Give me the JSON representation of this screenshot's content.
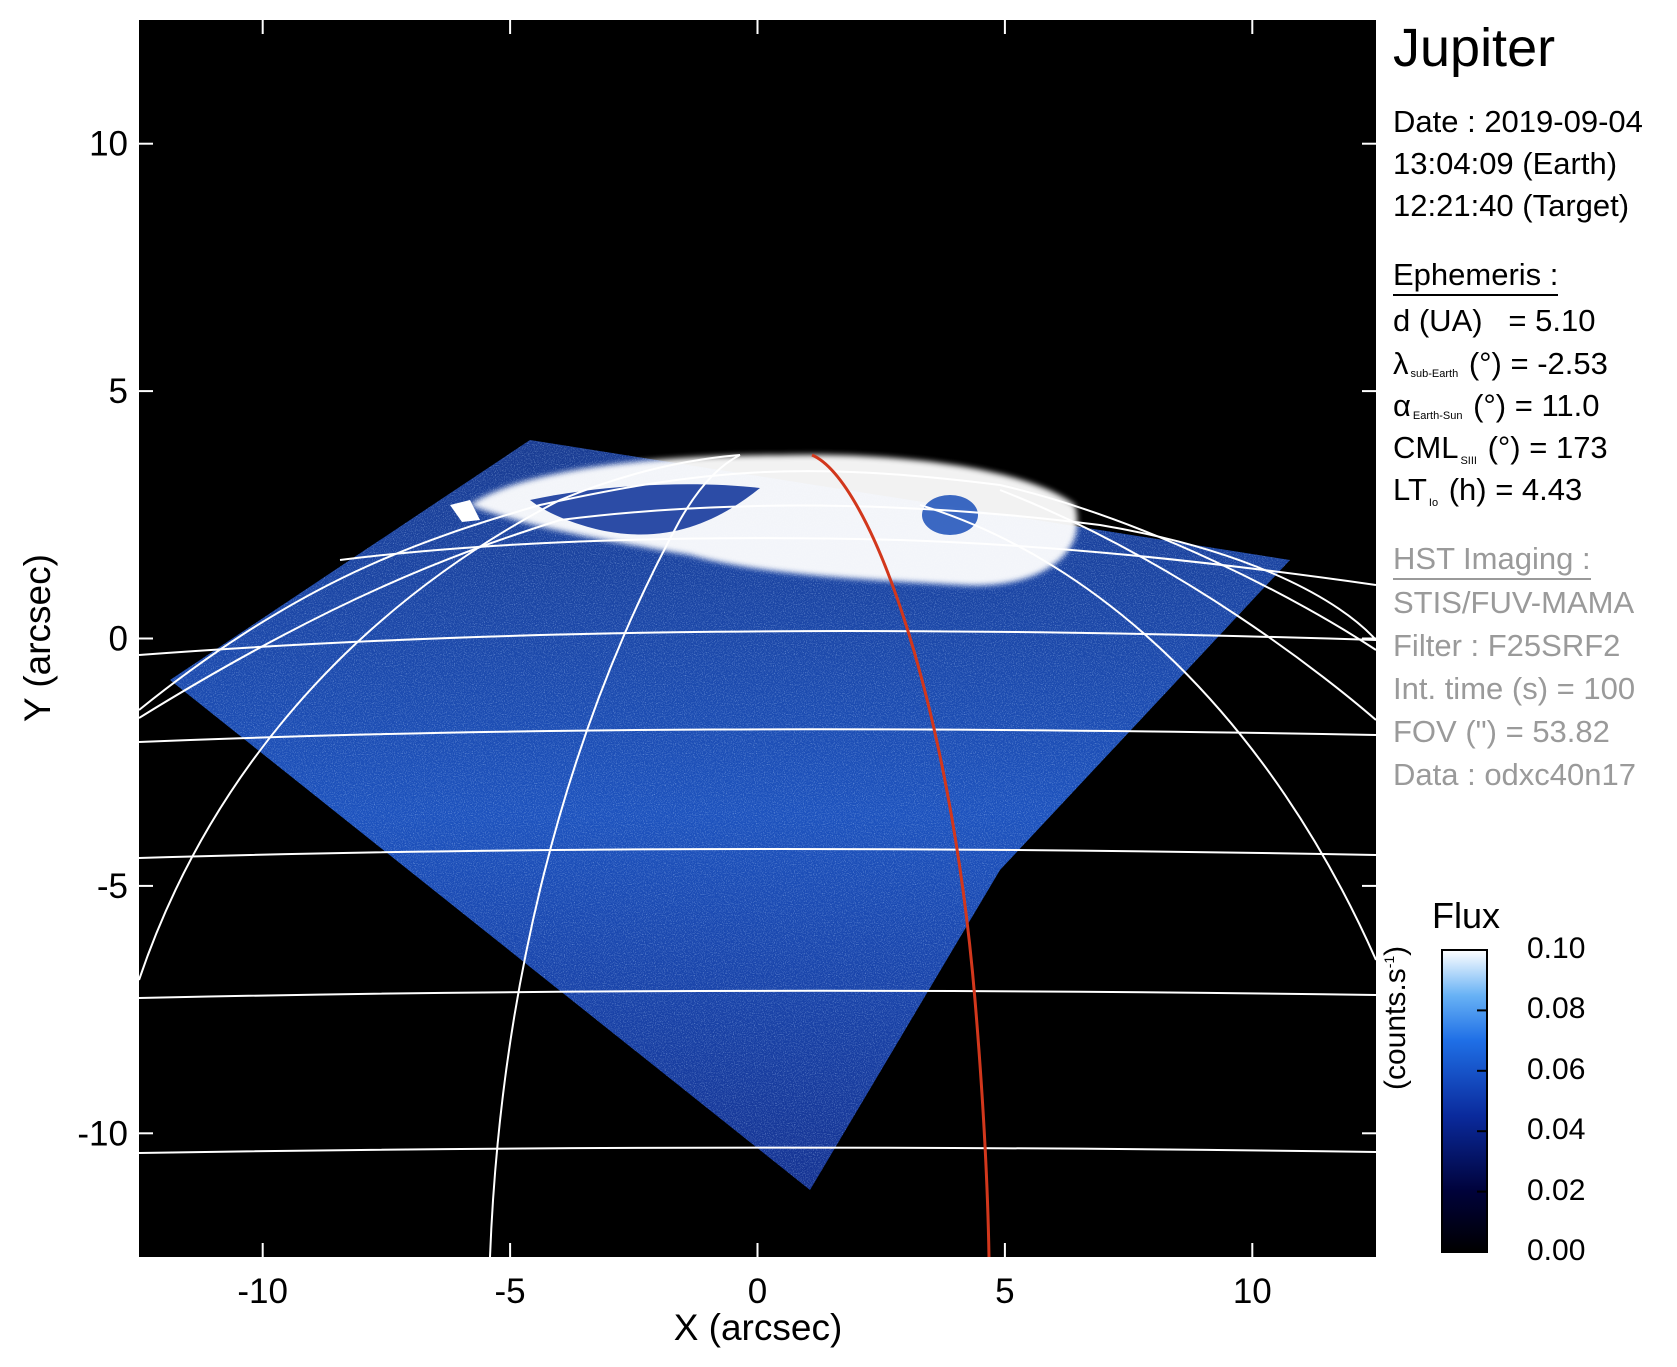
{
  "planet": "Jupiter",
  "date_lines": [
    "Date : 2019-09-04",
    "13:04:09 (Earth)",
    "12:21:40 (Target)"
  ],
  "ephemeris": {
    "header": "Ephemeris :",
    "d": {
      "label": "d (UA)",
      "value": "= 5.10"
    },
    "lat": {
      "symbol": "λ",
      "sub": "sub-Earth",
      "unit": " (°)",
      "value": " = -2.53"
    },
    "alpha": {
      "symbol": "α",
      "sub": "Earth-Sun",
      "unit": " (°)",
      "value": " = 11.0"
    },
    "cml": {
      "symbol": "CML",
      "sub": "SIII",
      "unit": " (°)",
      "value": " = 173"
    },
    "lt": {
      "symbol": "LT",
      "sub": "Io",
      "unit": " (h)",
      "value": " = 4.43"
    }
  },
  "hst": {
    "header": "HST Imaging :",
    "lines": [
      "STIS/FUV-MAMA",
      "Filter : F25SRF2",
      "Int. time (s) = 100",
      "FOV (\") = 53.82",
      "Data : odxc40n17"
    ]
  },
  "axes": {
    "xlabel": "X (arcsec)",
    "ylabel": "Y (arcsec)",
    "xlim": [
      -12.5,
      12.5
    ],
    "ylim": [
      -12.5,
      12.5
    ],
    "xticks": [
      -10,
      -5,
      0,
      5,
      10
    ],
    "yticks": [
      10,
      5,
      0,
      -5,
      -10
    ]
  },
  "colorbar": {
    "title": "Flux",
    "unit": "(counts.s-1)",
    "ticks": [
      "0.10",
      "0.08",
      "0.06",
      "0.04",
      "0.02",
      "0.00"
    ]
  },
  "colors": {
    "background": "#000000",
    "aurora": "#ffffff",
    "disk_blue": "#1e5bd6",
    "grid": "#ffffff",
    "io_footprint_line": "#d2371c",
    "hst_text": "#9a9a9a"
  }
}
